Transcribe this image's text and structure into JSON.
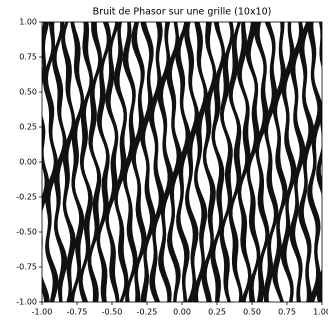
{
  "chart_data": {
    "type": "image",
    "title": "Bruit de Phasor sur une grille  (10x10)",
    "xlim": [
      -1,
      1
    ],
    "ylim": [
      -1,
      1
    ],
    "xticks": [
      {
        "value": -1,
        "label": "-1.00"
      },
      {
        "value": -0.75,
        "label": "-0.75"
      },
      {
        "value": -0.5,
        "label": "-0.50"
      },
      {
        "value": -0.25,
        "label": "-0.25"
      },
      {
        "value": 0,
        "label": "0.00"
      },
      {
        "value": 0.25,
        "label": "0.25"
      },
      {
        "value": 0.5,
        "label": "0.50"
      },
      {
        "value": 0.75,
        "label": "0.75"
      },
      {
        "value": 1,
        "label": "1.00"
      }
    ],
    "yticks": [
      {
        "value": -1,
        "label": "-1.00"
      },
      {
        "value": -0.75,
        "label": "-0.75"
      },
      {
        "value": -0.5,
        "label": "-0.50"
      },
      {
        "value": -0.25,
        "label": "-0.25"
      },
      {
        "value": 0,
        "label": "0.00"
      },
      {
        "value": 0.25,
        "label": "0.25"
      },
      {
        "value": 0.5,
        "label": "0.50"
      },
      {
        "value": 0.75,
        "label": "0.75"
      },
      {
        "value": 1,
        "label": "1.00"
      }
    ]
  }
}
